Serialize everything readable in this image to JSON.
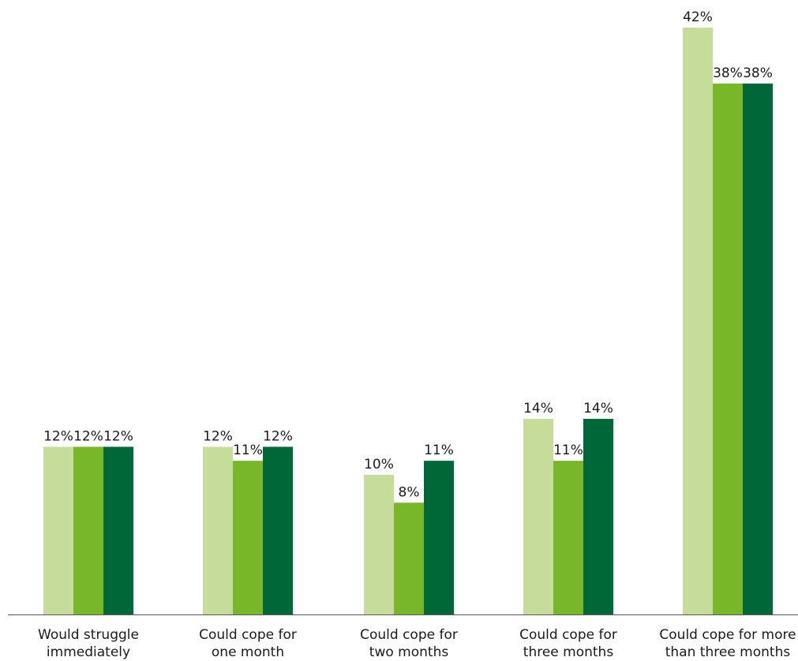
{
  "chart_data": {
    "type": "bar",
    "categories": [
      [
        "Would struggle",
        "immediately"
      ],
      [
        "Could cope for",
        "one month"
      ],
      [
        "Could cope for",
        "two months"
      ],
      [
        "Could cope for",
        "three months"
      ],
      [
        "Could cope for more",
        "than three months"
      ]
    ],
    "series": [
      {
        "color": "#c5dc9b",
        "values": [
          12,
          12,
          10,
          14,
          42
        ]
      },
      {
        "color": "#78b72a",
        "values": [
          12,
          11,
          8,
          11,
          38
        ]
      },
      {
        "color": "#006838",
        "values": [
          12,
          12,
          11,
          14,
          38
        ]
      }
    ],
    "data_labels": [
      [
        "12%",
        "12%",
        "10%",
        "14%",
        "42%"
      ],
      [
        "12%",
        "11%",
        "8%",
        "11%",
        "38%"
      ],
      [
        "12%",
        "12%",
        "11%",
        "14%",
        "38%"
      ]
    ],
    "ylim": [
      0,
      42
    ],
    "grid": false,
    "legend": "none",
    "title": "",
    "xlabel": "",
    "ylabel": "",
    "axis_color": "#595959"
  }
}
